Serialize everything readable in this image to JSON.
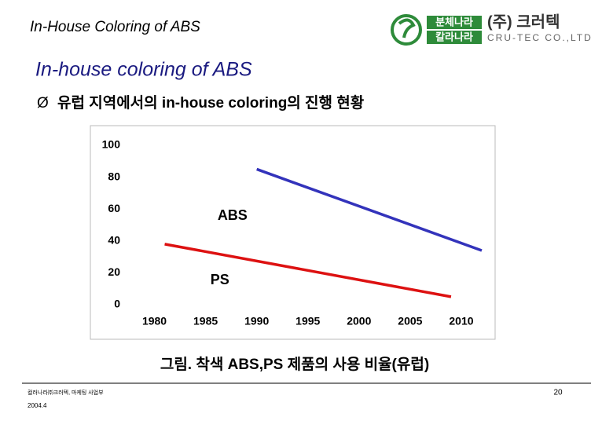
{
  "header": {
    "title": "In-House Coloring of ABS",
    "logo_top": "분체나라",
    "logo_bottom": "칼라나라",
    "company": "(주) 크러텍",
    "company_en": "CRU-TEC CO.,LTD"
  },
  "subtitle": "In-house coloring of ABS",
  "bullet": "유럽 지역에서의 in-house coloring의 진행 현황",
  "caption": "그림. 착색 ABS,PS 제품의 사용 비율(유럽)",
  "footer": {
    "org": "컬러나라㈜크러텍, 마케팅 사업부",
    "date": "2004.4",
    "page": "20"
  },
  "chart_data": {
    "type": "line",
    "series": [
      {
        "name": "ABS",
        "color": "#3333bb",
        "x": [
          1990,
          2012
        ],
        "values": [
          85,
          34
        ]
      },
      {
        "name": "PS",
        "color": "#dd1111",
        "x": [
          1981,
          2009
        ],
        "values": [
          38,
          5
        ]
      }
    ],
    "xlim": [
      1977.5,
      2013
    ],
    "xticks": [
      1980,
      1985,
      1990,
      1995,
      2000,
      2005,
      2010
    ],
    "ylim": [
      0,
      100
    ],
    "yticks": [
      0,
      20,
      40,
      60,
      80,
      100
    ],
    "grid": false
  }
}
